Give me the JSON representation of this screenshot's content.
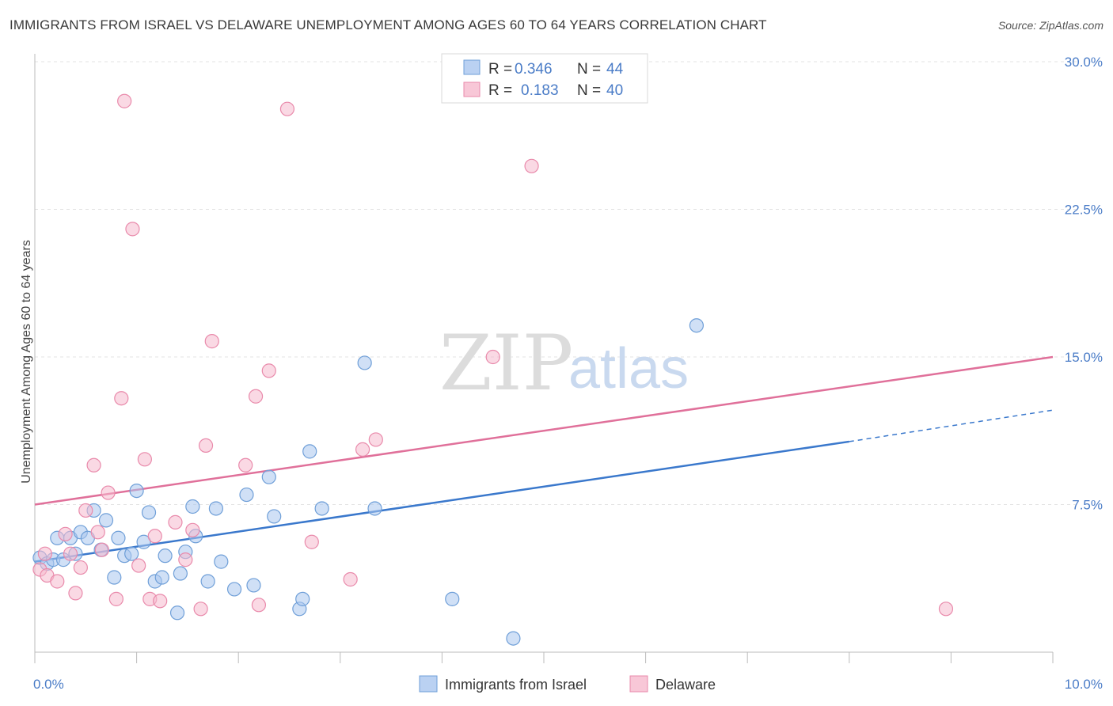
{
  "title": "IMMIGRANTS FROM ISRAEL VS DELAWARE UNEMPLOYMENT AMONG AGES 60 TO 64 YEARS CORRELATION CHART",
  "source": "Source: ZipAtlas.com",
  "watermark": {
    "zip": "ZIP",
    "atlas": "atlas"
  },
  "colors": {
    "blue_fill": "#a9c6ef",
    "blue_stroke": "#6f9fd8",
    "blue_line": "#3a78cc",
    "pink_fill": "#f6b9cd",
    "pink_stroke": "#e98aab",
    "pink_line": "#e0709a",
    "accent_text": "#4a7cc7"
  },
  "legend": {
    "rows": [
      {
        "r_label": "R =",
        "r_value": "0.346",
        "n_label": "N =",
        "n_value": "44"
      },
      {
        "r_label": "R =",
        "r_value": "0.183",
        "n_label": "N =",
        "n_value": "40"
      }
    ]
  },
  "chart_data": {
    "type": "scatter",
    "title": "IMMIGRANTS FROM ISRAEL VS DELAWARE UNEMPLOYMENT AMONG AGES 60 TO 64 YEARS CORRELATION CHART",
    "xlabel": "",
    "ylabel": "Unemployment Among Ages 60 to 64 years",
    "xlim": [
      0,
      10
    ],
    "ylim": [
      0,
      30
    ],
    "x_tick_labels": [
      "0.0%",
      "10.0%"
    ],
    "y_ticks": [
      7.5,
      15.0,
      22.5,
      30.0
    ],
    "y_tick_labels": [
      "7.5%",
      "15.0%",
      "22.5%",
      "30.0%"
    ],
    "grid": true,
    "legend_position": "top-center",
    "series": [
      {
        "name": "Immigrants from Israel",
        "r": 0.346,
        "n": 44,
        "trend": {
          "x0": 0.0,
          "y0": 4.6,
          "x1": 8.0,
          "y1": 10.7,
          "dash_to_x": 10.0,
          "dash_to_y": 12.3
        },
        "points": [
          [
            0.05,
            4.8
          ],
          [
            0.12,
            4.5
          ],
          [
            0.18,
            4.7
          ],
          [
            0.22,
            5.8
          ],
          [
            0.28,
            4.7
          ],
          [
            0.35,
            5.8
          ],
          [
            0.4,
            5.0
          ],
          [
            0.45,
            6.1
          ],
          [
            0.52,
            5.8
          ],
          [
            0.58,
            7.2
          ],
          [
            0.65,
            5.2
          ],
          [
            0.7,
            6.7
          ],
          [
            0.78,
            3.8
          ],
          [
            0.82,
            5.8
          ],
          [
            0.88,
            4.9
          ],
          [
            0.95,
            5.0
          ],
          [
            1.0,
            8.2
          ],
          [
            1.07,
            5.6
          ],
          [
            1.12,
            7.1
          ],
          [
            1.18,
            3.6
          ],
          [
            1.25,
            3.8
          ],
          [
            1.28,
            4.9
          ],
          [
            1.4,
            2.0
          ],
          [
            1.43,
            4.0
          ],
          [
            1.48,
            5.1
          ],
          [
            1.55,
            7.4
          ],
          [
            1.58,
            5.9
          ],
          [
            1.7,
            3.6
          ],
          [
            1.78,
            7.3
          ],
          [
            1.83,
            4.6
          ],
          [
            1.96,
            3.2
          ],
          [
            2.08,
            8.0
          ],
          [
            2.15,
            3.4
          ],
          [
            2.3,
            8.9
          ],
          [
            2.35,
            6.9
          ],
          [
            2.6,
            2.2
          ],
          [
            2.63,
            2.7
          ],
          [
            2.7,
            10.2
          ],
          [
            2.82,
            7.3
          ],
          [
            3.24,
            14.7
          ],
          [
            3.34,
            7.3
          ],
          [
            4.1,
            2.7
          ],
          [
            4.7,
            0.7
          ],
          [
            6.5,
            16.6
          ]
        ]
      },
      {
        "name": "Delaware",
        "r": 0.183,
        "n": 40,
        "trend": {
          "x0": 0.0,
          "y0": 7.5,
          "x1": 10.0,
          "y1": 15.0
        },
        "points": [
          [
            0.05,
            4.2
          ],
          [
            0.12,
            3.9
          ],
          [
            0.22,
            3.6
          ],
          [
            0.3,
            6.0
          ],
          [
            0.35,
            5.0
          ],
          [
            0.4,
            3.0
          ],
          [
            0.45,
            4.3
          ],
          [
            0.5,
            7.2
          ],
          [
            0.58,
            9.5
          ],
          [
            0.62,
            6.1
          ],
          [
            0.66,
            5.2
          ],
          [
            0.72,
            8.1
          ],
          [
            0.8,
            2.7
          ],
          [
            0.85,
            12.9
          ],
          [
            0.88,
            28.0
          ],
          [
            0.96,
            21.5
          ],
          [
            1.02,
            4.4
          ],
          [
            1.08,
            9.8
          ],
          [
            1.13,
            2.7
          ],
          [
            1.18,
            5.9
          ],
          [
            1.23,
            2.6
          ],
          [
            1.38,
            6.6
          ],
          [
            1.48,
            4.7
          ],
          [
            1.55,
            6.2
          ],
          [
            1.63,
            2.2
          ],
          [
            1.68,
            10.5
          ],
          [
            1.74,
            15.8
          ],
          [
            2.07,
            9.5
          ],
          [
            2.17,
            13.0
          ],
          [
            2.2,
            2.4
          ],
          [
            2.3,
            14.3
          ],
          [
            2.48,
            27.6
          ],
          [
            2.72,
            5.6
          ],
          [
            3.1,
            3.7
          ],
          [
            3.22,
            10.3
          ],
          [
            3.35,
            10.8
          ],
          [
            4.5,
            15.0
          ],
          [
            4.88,
            24.7
          ],
          [
            8.95,
            2.2
          ],
          [
            0.1,
            5.0
          ]
        ]
      }
    ]
  },
  "bottom_legend": [
    {
      "label": "Immigrants from Israel"
    },
    {
      "label": "Delaware"
    }
  ]
}
